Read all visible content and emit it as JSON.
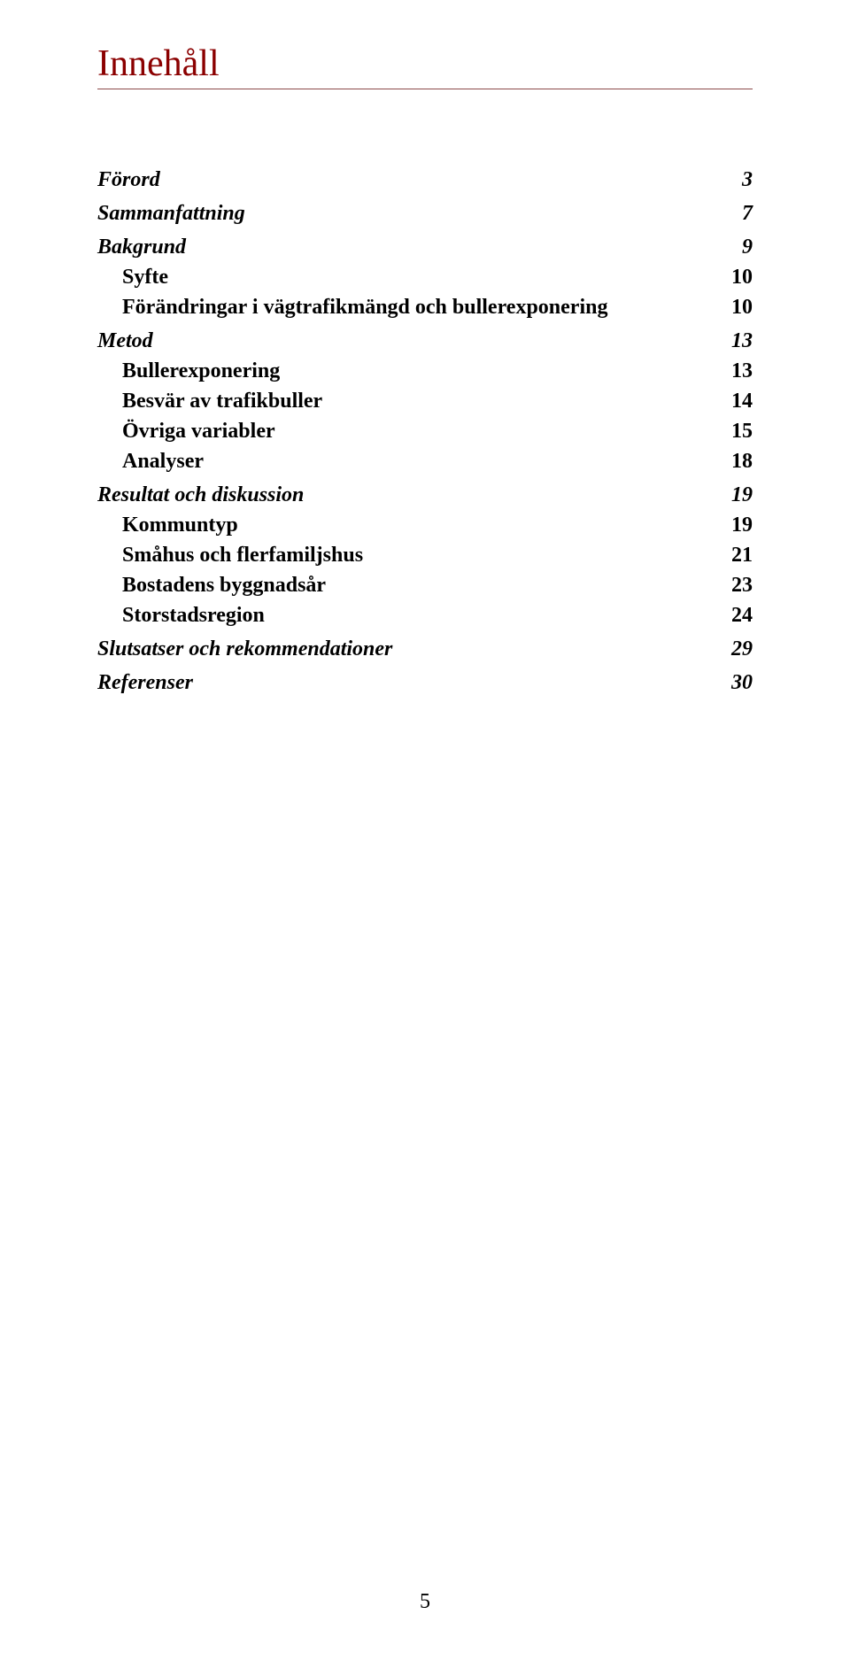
{
  "title": "Innehåll",
  "title_color": "#8b0000",
  "rule_color": "#8b4a4a",
  "footer_page_number": "5",
  "toc": [
    {
      "level": 0,
      "label": "Förord",
      "page": "3"
    },
    {
      "level": 0,
      "label": "Sammanfattning",
      "page": "7"
    },
    {
      "level": 0,
      "label": "Bakgrund",
      "page": "9"
    },
    {
      "level": 1,
      "label": "Syfte",
      "page": "10"
    },
    {
      "level": 1,
      "label": "Förändringar i vägtrafikmängd och  bullerexponering",
      "page": "10"
    },
    {
      "level": 0,
      "label": "Metod",
      "page": "13"
    },
    {
      "level": 1,
      "label": "Bullerexponering",
      "page": "13"
    },
    {
      "level": 1,
      "label": "Besvär av trafikbuller",
      "page": "14"
    },
    {
      "level": 1,
      "label": "Övriga variabler",
      "page": "15"
    },
    {
      "level": 1,
      "label": "Analyser",
      "page": "18"
    },
    {
      "level": 0,
      "label": "Resultat och diskussion",
      "page": "19"
    },
    {
      "level": 1,
      "label": "Kommuntyp",
      "page": "19"
    },
    {
      "level": 1,
      "label": "Småhus och flerfamiljshus",
      "page": "21"
    },
    {
      "level": 1,
      "label": "Bostadens byggnadsår",
      "page": "23"
    },
    {
      "level": 1,
      "label": "Storstadsregion",
      "page": "24"
    },
    {
      "level": 0,
      "label": "Slutsatser och rekommendationer",
      "page": "29"
    },
    {
      "level": 0,
      "label": "Referenser",
      "page": "30"
    }
  ]
}
